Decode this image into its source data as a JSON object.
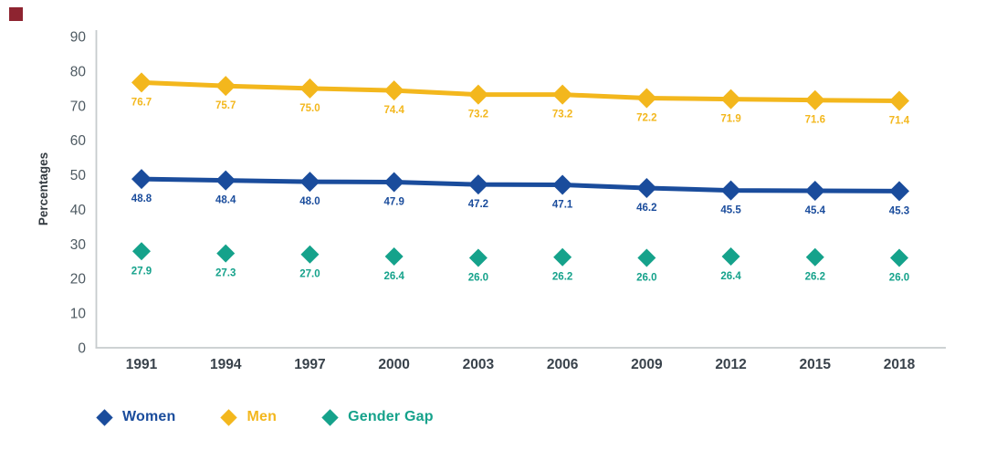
{
  "page": {
    "background_color": "#ffffff",
    "corner_marker_color": "#8e2430"
  },
  "chart_data": {
    "type": "line",
    "title": "",
    "xlabel": "",
    "ylabel": "Percentages",
    "categories": [
      "1991",
      "1994",
      "1997",
      "2000",
      "2003",
      "2006",
      "2009",
      "2012",
      "2015",
      "2018"
    ],
    "series": [
      {
        "name": "Women",
        "color": "#1a4c9c",
        "line": true,
        "marker": "diamond",
        "values": [
          48.8,
          48.4,
          48.0,
          47.9,
          47.2,
          47.1,
          46.2,
          45.5,
          45.4,
          45.3
        ]
      },
      {
        "name": "Men",
        "color": "#f3b71d",
        "line": true,
        "marker": "diamond",
        "values": [
          76.7,
          75.7,
          75.0,
          74.4,
          73.2,
          73.2,
          72.2,
          71.9,
          71.6,
          71.4
        ]
      },
      {
        "name": "Gender Gap",
        "color": "#15a28b",
        "line": false,
        "marker": "diamond",
        "values": [
          27.9,
          27.3,
          27.0,
          26.4,
          26.0,
          26.2,
          26.0,
          26.4,
          26.2,
          26.0
        ]
      }
    ],
    "y_ticks": [
      90,
      80,
      70,
      60,
      50,
      40,
      30,
      20,
      10,
      0
    ],
    "ylim": [
      0,
      90
    ],
    "grid": false,
    "data_labels": true,
    "legend_position": "bottom-left",
    "style": {
      "axis_color": "#c7cbcd",
      "tick_label_color": "#4e5a62",
      "year_label_color": "#39424b",
      "ylabel_color": "#333a40"
    }
  }
}
